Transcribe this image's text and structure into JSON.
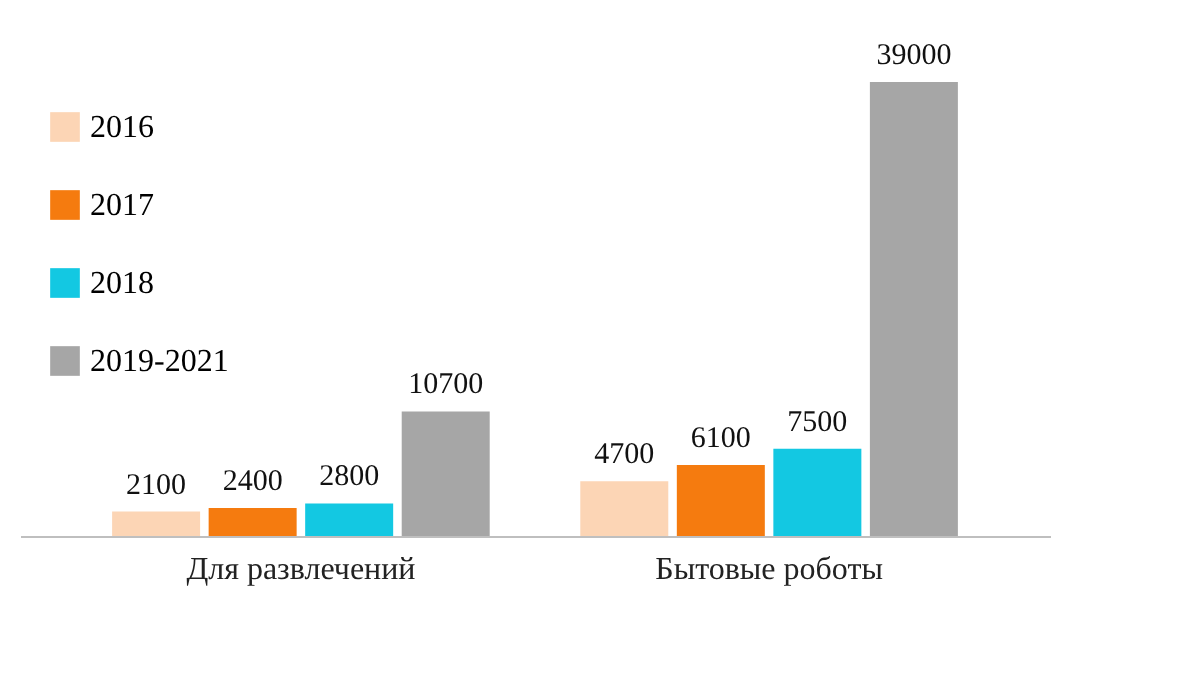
{
  "chart_data": {
    "type": "bar",
    "categories": [
      "Для развлечений",
      "Бытовые роботы"
    ],
    "series": [
      {
        "name": "2016",
        "color": "#fcd5b5",
        "values": [
          2100,
          4700
        ]
      },
      {
        "name": "2017",
        "color": "#f57b0f",
        "values": [
          2400,
          6100
        ]
      },
      {
        "name": "2018",
        "color": "#13c8e2",
        "values": [
          2800,
          7500
        ]
      },
      {
        "name": "2019-2021",
        "color": "#a6a6a6",
        "values": [
          10700,
          39000
        ]
      }
    ],
    "data_labels": true,
    "legend": "top left"
  }
}
